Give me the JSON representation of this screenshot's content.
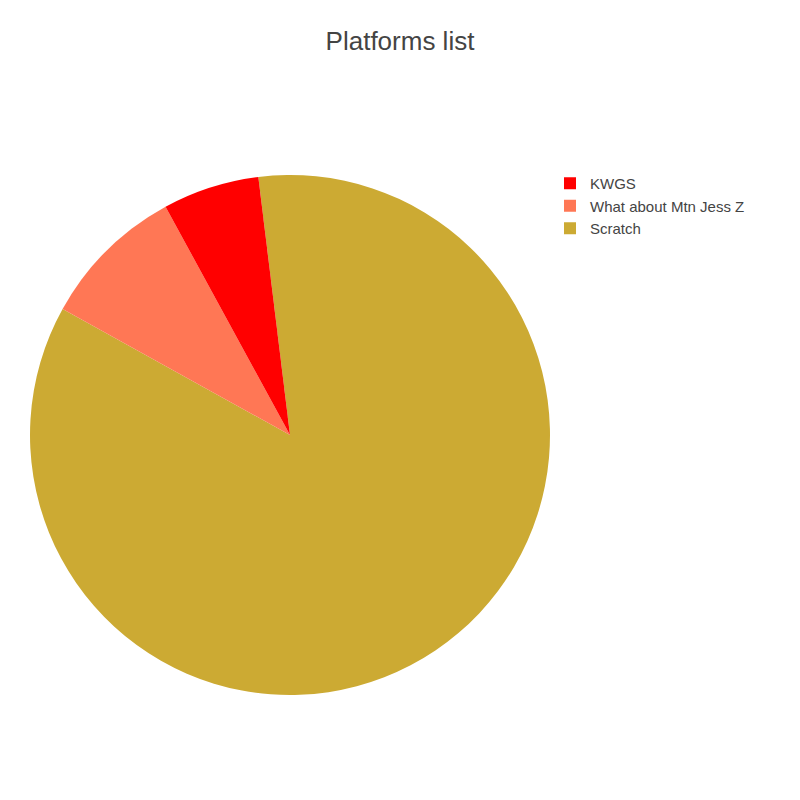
{
  "chart_data": {
    "type": "pie",
    "title": "Platforms list",
    "categories": [
      "Scratch",
      "What about Mtn Jess Z",
      "KWGS"
    ],
    "values": [
      85,
      9,
      6
    ],
    "colors": [
      "#ccaa33",
      "#ff7755",
      "#ff0000"
    ],
    "legend": "upper right"
  }
}
